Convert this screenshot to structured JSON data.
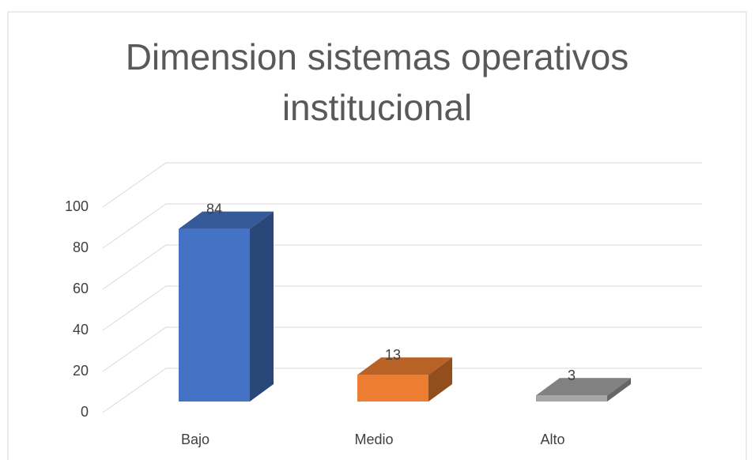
{
  "chart_data": {
    "type": "bar3d",
    "title": "Dimension sistemas operativos institucional",
    "categories": [
      "Bajo",
      "Medio",
      "Alto"
    ],
    "values": [
      84,
      13,
      3
    ],
    "colors": [
      "#4472c4",
      "#ed7d31",
      "#a5a5a5"
    ],
    "ylim": [
      0,
      100
    ],
    "yticks": [
      0,
      20,
      40,
      60,
      80,
      100
    ],
    "grid": true
  }
}
